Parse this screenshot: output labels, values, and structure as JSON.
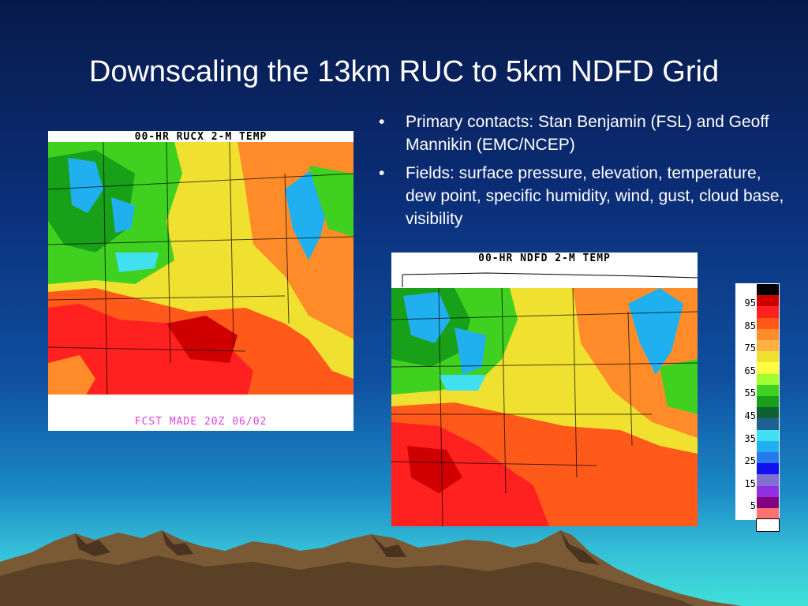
{
  "slide": {
    "title": "Downscaling the 13km RUC to 5km NDFD Grid",
    "bullets": [
      "Primary contacts: Stan Benjamin (FSL) and Geoff Mannikin (EMC/NCEP)",
      "Fields: surface pressure, elevation, temperature, dew point, specific humidity, wind, gust, cloud base, visibility"
    ],
    "bullet_marker": "•"
  },
  "map_ruc": {
    "header": "00-HR RUCX 2-M TEMP",
    "footer": "FCST MADE 20Z  06/02"
  },
  "map_ndfd": {
    "header": "00-HR NDFD  2-M TEMP"
  },
  "legend": {
    "labels": [
      "95",
      "85",
      "75",
      "65",
      "55",
      "45",
      "35",
      "25",
      "15",
      "5"
    ],
    "colors": [
      "#000000",
      "#d00000",
      "#ff2020",
      "#ff5a1a",
      "#ff8c28",
      "#ffb040",
      "#f0e030",
      "#ffff40",
      "#a0ff30",
      "#40d020",
      "#18a018",
      "#106030",
      "#206090",
      "#40e0f0",
      "#20b0f0",
      "#2878f0",
      "#1010f0",
      "#8070d0",
      "#9030e0",
      "#800080",
      "#ff7070",
      "#ffffff"
    ]
  }
}
